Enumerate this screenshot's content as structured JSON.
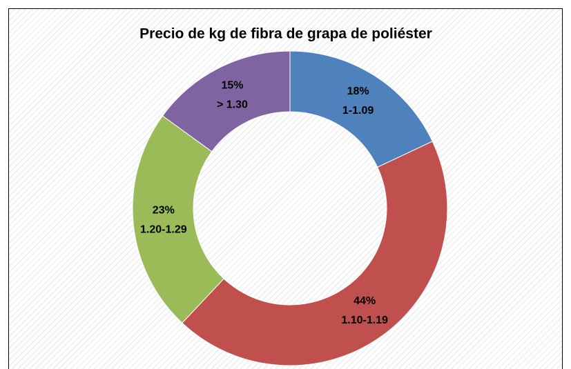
{
  "chart_data": {
    "type": "donut",
    "title": "Precio de kg de fibra de grapa de poliéster",
    "categories": [
      "1-1.09",
      "1.10-1.19",
      "1.20-1.29",
      "> 1.30"
    ],
    "values": [
      18,
      44,
      23,
      15
    ],
    "value_labels": [
      "18%",
      "44%",
      "23%",
      "15%"
    ],
    "colors": [
      "#4f81bd",
      "#c0504d",
      "#9bbb59",
      "#8064a2"
    ]
  }
}
